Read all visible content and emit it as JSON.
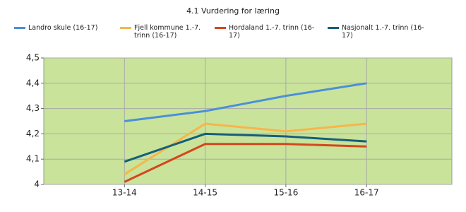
{
  "chart_data": {
    "type": "line",
    "title": "4.1 Vurdering for læring",
    "categories": [
      "13-14",
      "14-15",
      "15-16",
      "16-17"
    ],
    "series": [
      {
        "name": "Landro skule (16-17)",
        "color": "#4a8fd9",
        "values": [
          4.25,
          4.29,
          4.35,
          4.4
        ]
      },
      {
        "name": "Fjell kommune 1.-7. trinn (16-17)",
        "color": "#f7b54b",
        "values": [
          4.04,
          4.24,
          4.21,
          4.24
        ]
      },
      {
        "name": "Hordaland 1.-7. trinn (16-17)",
        "color": "#d5461c",
        "values": [
          4.01,
          4.16,
          4.16,
          4.15
        ]
      },
      {
        "name": "Nasjonalt 1.-7. trinn (16-17)",
        "color": "#155f79",
        "values": [
          4.09,
          4.2,
          4.19,
          4.17
        ]
      }
    ],
    "ylim": [
      4,
      4.5
    ],
    "yticks": [
      4,
      {
        "value": 4.1,
        "label": "4,1"
      },
      {
        "value": 4.2,
        "label": "4,2"
      },
      {
        "value": 4.3,
        "label": "4,3"
      },
      {
        "value": 4.4,
        "label": "4,4"
      },
      {
        "value": 4.5,
        "label": "4,5"
      }
    ],
    "grid": true,
    "plot_background": "#c9e39b"
  }
}
